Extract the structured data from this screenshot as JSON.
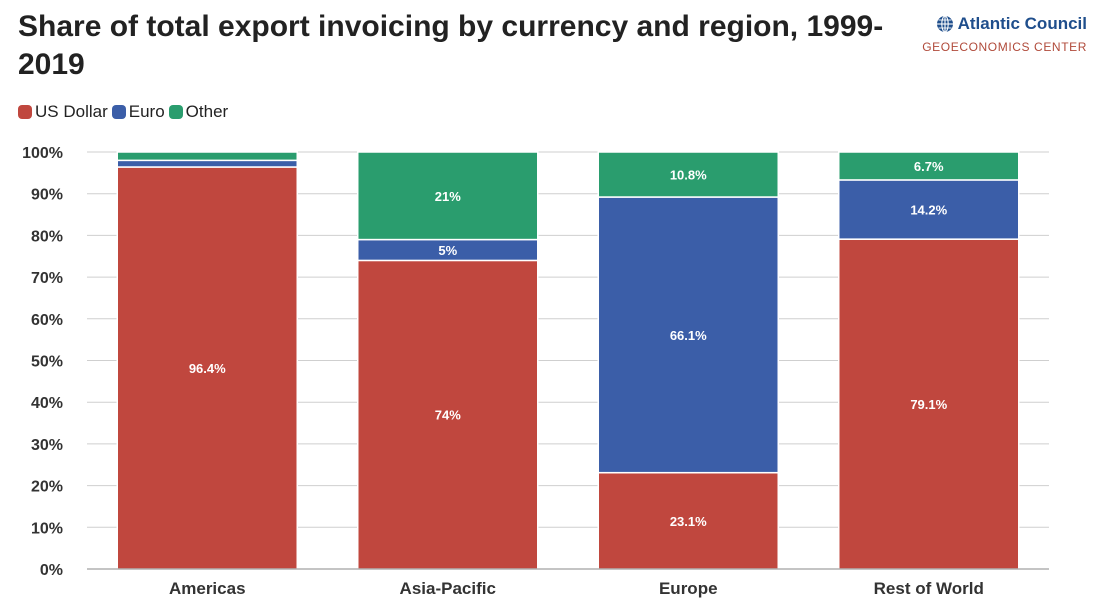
{
  "header": {
    "title": "Share of total export invoicing by currency and region, 1999-2019",
    "brand_name": "Atlantic Council",
    "brand_sub": "GEOECONOMICS CENTER"
  },
  "icons": {
    "brand_logo": "globe-icon"
  },
  "chart_data": {
    "type": "bar",
    "stacked": true,
    "categories": [
      "Americas",
      "Asia-Pacific",
      "Europe",
      "Rest of World"
    ],
    "series": [
      {
        "name": "US Dollar",
        "color": "#c0473e",
        "values": [
          96.4,
          74,
          23.1,
          79.1
        ],
        "labels": [
          "96.4%",
          "74%",
          "23.1%",
          "79.1%"
        ]
      },
      {
        "name": "Euro",
        "color": "#3b5ea8",
        "values": [
          1.6,
          5,
          66.1,
          14.2
        ],
        "labels": [
          "",
          "5%",
          "66.1%",
          "14.2%"
        ]
      },
      {
        "name": "Other",
        "color": "#2a9d6e",
        "values": [
          2.0,
          21,
          10.8,
          6.7
        ],
        "labels": [
          "",
          "21%",
          "10.8%",
          "6.7%"
        ]
      }
    ],
    "yticks": [
      "0%",
      "10%",
      "20%",
      "30%",
      "40%",
      "50%",
      "60%",
      "70%",
      "80%",
      "90%",
      "100%"
    ],
    "ylim": [
      0,
      100
    ],
    "grid": true,
    "legend": "top-left",
    "xlabel": "",
    "ylabel": ""
  }
}
